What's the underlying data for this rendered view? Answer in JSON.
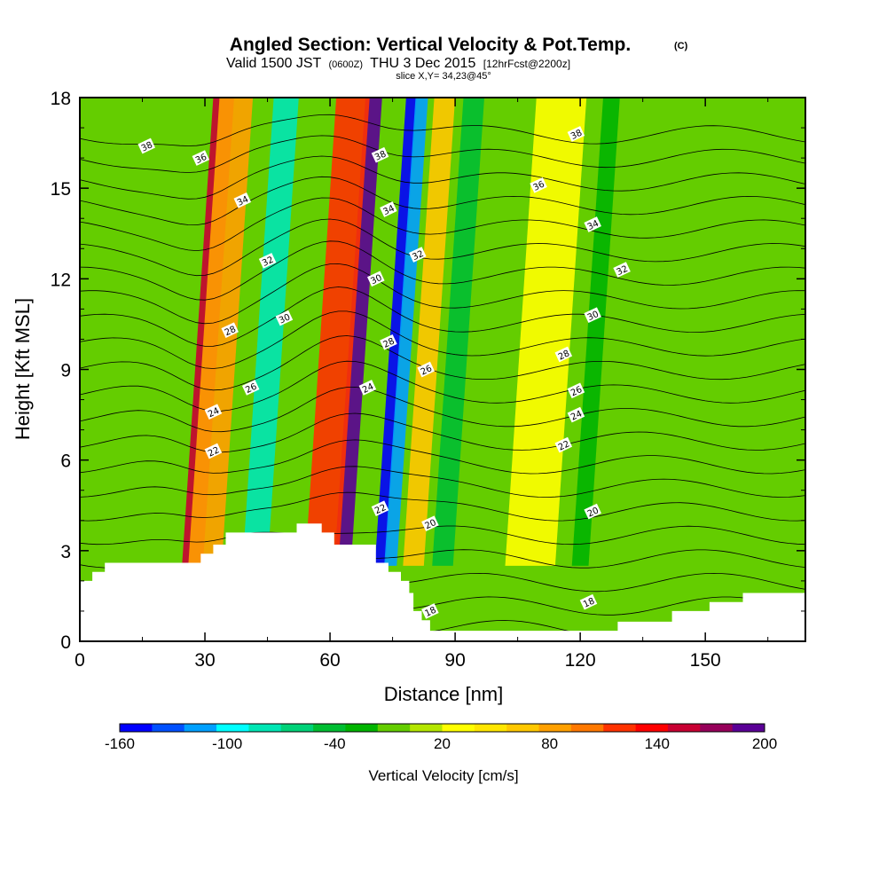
{
  "chart_data": {
    "type": "heatmap",
    "title": "Angled Section: Vertical Velocity & Pot.Temp.",
    "title_mark": "(C)",
    "subtitle": {
      "valid": "Valid 1500 JST",
      "utc": "(0600Z)",
      "date": "THU 3 Dec 2015",
      "fcst": "[12hrFcst@2200z]"
    },
    "slice": "slice X,Y= 34,23@45°",
    "xlabel": "Distance [nm]",
    "ylabel": "Height [Kft MSL]",
    "xlim": [
      0,
      174
    ],
    "ylim": [
      0,
      18
    ],
    "xticks": [
      0,
      30,
      60,
      90,
      120,
      150
    ],
    "yticks": [
      0,
      3,
      6,
      9,
      12,
      15,
      18
    ],
    "colorbar": {
      "title": "Vertical Velocity [cm/s]",
      "min": -160,
      "max": 200,
      "labels": [
        -160,
        -100,
        -40,
        20,
        80,
        140,
        200
      ],
      "colors": [
        "#0000ff",
        "#0050ff",
        "#00a0ff",
        "#00ffff",
        "#00e6b4",
        "#00d278",
        "#00be32",
        "#00b400",
        "#64cd00",
        "#b4e600",
        "#ffff00",
        "#ffe600",
        "#ffc800",
        "#ffa000",
        "#ff7800",
        "#ff3200",
        "#ff0000",
        "#c80032",
        "#96005a",
        "#5a0096"
      ]
    },
    "velocity_bands": [
      {
        "x": 27,
        "w": 5,
        "v": 150
      },
      {
        "x": 30,
        "w": 8,
        "v": 90
      },
      {
        "x": 42,
        "w": 6,
        "v": -80
      },
      {
        "x": 63,
        "w": 4,
        "v": 200
      },
      {
        "x": 58,
        "w": 8,
        "v": 110
      },
      {
        "x": 72,
        "w": 2.5,
        "v": -160
      },
      {
        "x": 74.5,
        "w": 3,
        "v": -110
      },
      {
        "x": 80,
        "w": 5,
        "v": 60
      },
      {
        "x": 87,
        "w": 5,
        "v": -50
      },
      {
        "x": 108,
        "w": 12,
        "v": 25
      },
      {
        "x": 120,
        "w": 4,
        "v": -20
      },
      {
        "x": 150,
        "w": 10,
        "v": -15
      }
    ],
    "terrain_kft": [
      [
        0,
        2.0
      ],
      [
        3,
        2.0
      ],
      [
        3,
        2.3
      ],
      [
        6,
        2.3
      ],
      [
        6,
        2.6
      ],
      [
        29,
        2.6
      ],
      [
        29,
        2.9
      ],
      [
        32,
        2.9
      ],
      [
        32,
        3.2
      ],
      [
        35,
        3.2
      ],
      [
        35,
        3.6
      ],
      [
        52,
        3.6
      ],
      [
        52,
        3.9
      ],
      [
        58,
        3.9
      ],
      [
        58,
        3.6
      ],
      [
        61,
        3.6
      ],
      [
        61,
        3.2
      ],
      [
        71,
        3.2
      ],
      [
        71,
        2.6
      ],
      [
        74,
        2.6
      ],
      [
        74,
        2.3
      ],
      [
        77,
        2.3
      ],
      [
        77,
        2.0
      ],
      [
        79,
        2.0
      ],
      [
        79,
        1.6
      ],
      [
        80,
        1.6
      ],
      [
        80,
        1.0
      ],
      [
        82,
        1.0
      ],
      [
        82,
        0.7
      ],
      [
        84,
        0.7
      ],
      [
        84,
        0.35
      ],
      [
        129,
        0.35
      ],
      [
        129,
        0.65
      ],
      [
        142,
        0.65
      ],
      [
        142,
        1.0
      ],
      [
        151,
        1.0
      ],
      [
        151,
        1.3
      ],
      [
        159,
        1.3
      ],
      [
        159,
        1.6
      ],
      [
        174,
        1.6
      ]
    ],
    "theta_contour_labels": [
      {
        "text": "38",
        "x": 16,
        "y": 16.4
      },
      {
        "text": "36",
        "x": 29,
        "y": 16.0
      },
      {
        "text": "34",
        "x": 39,
        "y": 14.6
      },
      {
        "text": "32",
        "x": 45,
        "y": 12.6
      },
      {
        "text": "30",
        "x": 49,
        "y": 10.7
      },
      {
        "text": "28",
        "x": 36,
        "y": 10.3
      },
      {
        "text": "26",
        "x": 41,
        "y": 8.4
      },
      {
        "text": "24",
        "x": 32,
        "y": 7.6
      },
      {
        "text": "22",
        "x": 32,
        "y": 6.3
      },
      {
        "text": "38",
        "x": 72,
        "y": 16.1
      },
      {
        "text": "34",
        "x": 74,
        "y": 14.3
      },
      {
        "text": "32",
        "x": 81,
        "y": 12.8
      },
      {
        "text": "30",
        "x": 71,
        "y": 12.0
      },
      {
        "text": "28",
        "x": 74,
        "y": 9.9
      },
      {
        "text": "26",
        "x": 83,
        "y": 9.0
      },
      {
        "text": "24",
        "x": 69,
        "y": 8.4
      },
      {
        "text": "22",
        "x": 72,
        "y": 4.4
      },
      {
        "text": "20",
        "x": 84,
        "y": 3.9
      },
      {
        "text": "18",
        "x": 84,
        "y": 1.0
      },
      {
        "text": "38",
        "x": 119,
        "y": 16.8
      },
      {
        "text": "36",
        "x": 110,
        "y": 15.1
      },
      {
        "text": "34",
        "x": 123,
        "y": 13.8
      },
      {
        "text": "32",
        "x": 130,
        "y": 12.3
      },
      {
        "text": "30",
        "x": 123,
        "y": 10.8
      },
      {
        "text": "28",
        "x": 116,
        "y": 9.5
      },
      {
        "text": "26",
        "x": 119,
        "y": 8.3
      },
      {
        "text": "24",
        "x": 119,
        "y": 7.5
      },
      {
        "text": "22",
        "x": 116,
        "y": 6.5
      },
      {
        "text": "20",
        "x": 123,
        "y": 4.3
      },
      {
        "text": "18",
        "x": 122,
        "y": 1.3
      }
    ],
    "theta_levels": [
      18,
      19,
      20,
      21,
      22,
      23,
      24,
      25,
      26,
      27,
      28,
      29,
      30,
      31,
      32,
      33,
      34,
      35,
      36,
      37,
      38,
      39
    ],
    "grid": false,
    "legend": "bottom-colorbar"
  }
}
